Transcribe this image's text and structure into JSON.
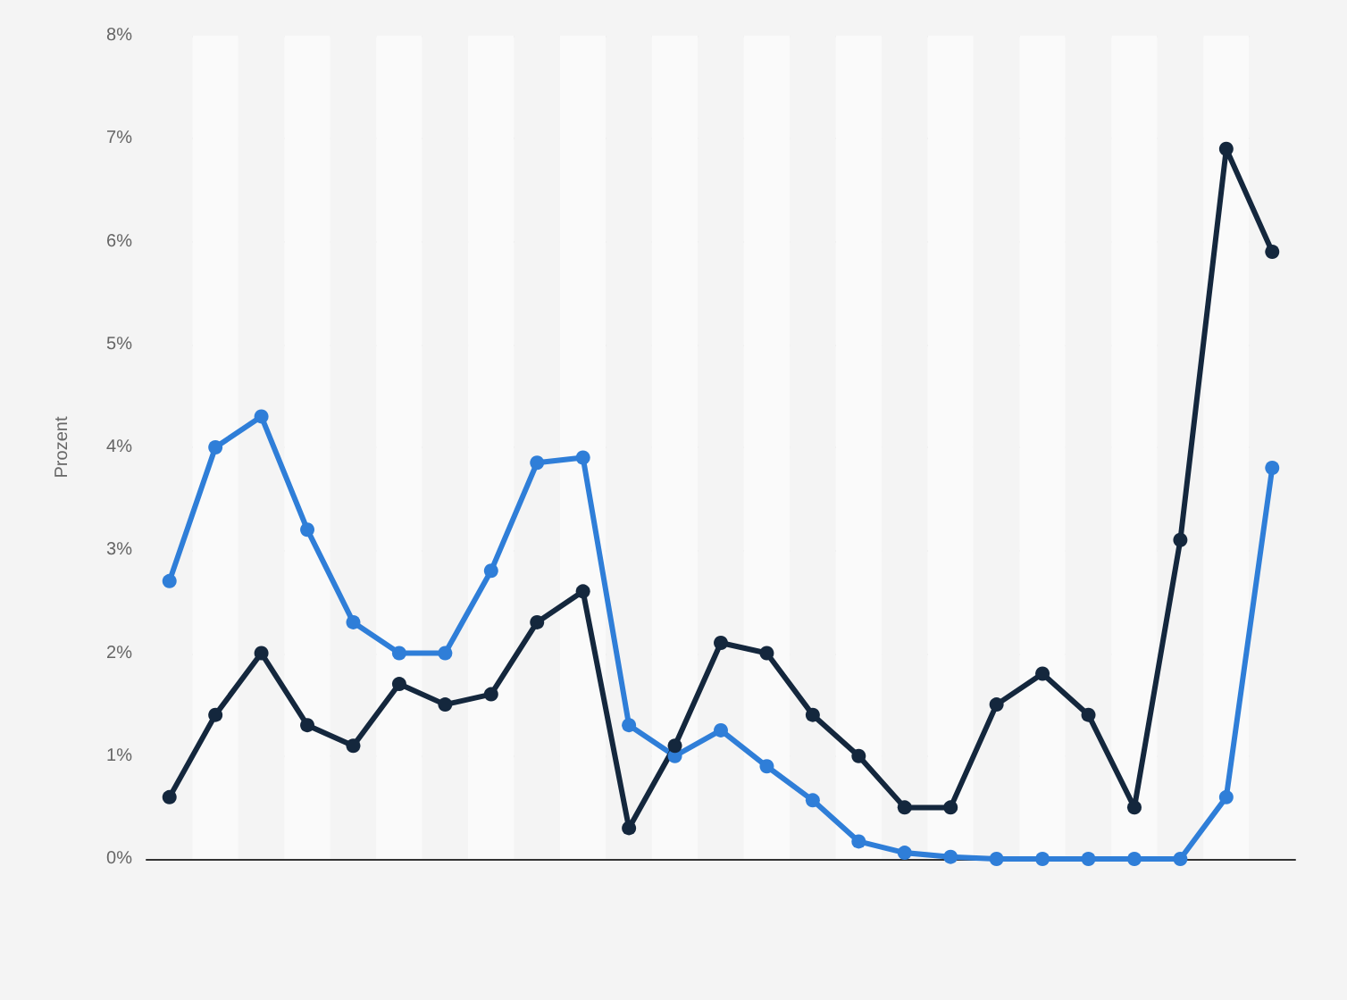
{
  "chart_data": {
    "type": "line",
    "ylabel": "Prozent",
    "categories": [
      null,
      null,
      null,
      null,
      null,
      null,
      null,
      null,
      null,
      null,
      null,
      null,
      null,
      null,
      null,
      null,
      null,
      null,
      null,
      null,
      null,
      null,
      null,
      null,
      null
    ],
    "series": [
      {
        "color": "#2f7ed8",
        "values": [
          2.7,
          4.0,
          4.3,
          3.2,
          2.3,
          2.0,
          2.0,
          2.8,
          3.85,
          3.9,
          1.3,
          1.0,
          1.25,
          0.9,
          0.57,
          0.17,
          0.06,
          0.02,
          0,
          0,
          0,
          0,
          0,
          0.6,
          3.8
        ]
      },
      {
        "color": "#14273d",
        "values": [
          0.6,
          1.4,
          2.0,
          1.3,
          1.1,
          1.7,
          1.5,
          1.6,
          2.3,
          2.6,
          0.3,
          1.1,
          2.1,
          2.0,
          1.4,
          1.0,
          0.5,
          0.5,
          1.5,
          1.8,
          1.4,
          0.5,
          3.1,
          6.9,
          5.9
        ]
      }
    ],
    "ylim": [
      0,
      8
    ],
    "yticks": [
      {
        "value": 0,
        "label": "0%"
      },
      {
        "value": 1,
        "label": "1%"
      },
      {
        "value": 2,
        "label": "2%"
      },
      {
        "value": 3,
        "label": "3%"
      },
      {
        "value": 4,
        "label": "4%"
      },
      {
        "value": 5,
        "label": "5%"
      },
      {
        "value": 6,
        "label": "6%"
      },
      {
        "value": 7,
        "label": "7%"
      },
      {
        "value": 8,
        "label": "8%"
      }
    ],
    "grid": "y",
    "marker": "circle",
    "line_style": "solid"
  }
}
